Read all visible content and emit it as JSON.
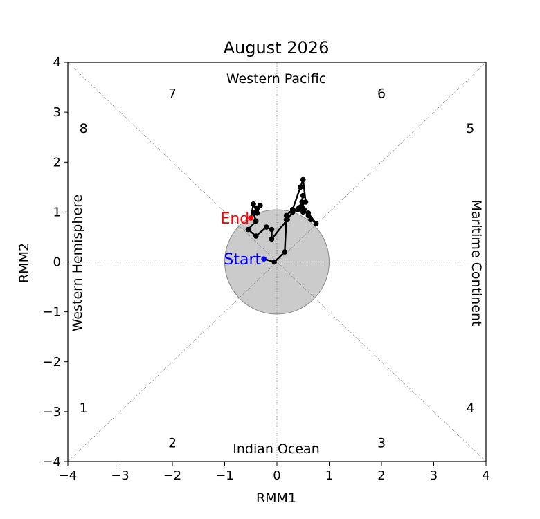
{
  "chart_data": {
    "type": "line",
    "title": "August 2026",
    "xlabel": "RMM1",
    "ylabel": "RMM2",
    "xlim": [
      -4,
      4
    ],
    "ylim": [
      -4,
      4
    ],
    "x_ticks": [
      "−4",
      "−3",
      "−2",
      "−1",
      "0",
      "1",
      "2",
      "3",
      "4"
    ],
    "y_ticks": [
      "−4",
      "−3",
      "−2",
      "−1",
      "0",
      "1",
      "2",
      "3",
      "4"
    ],
    "regions": {
      "top": "Western Pacific",
      "bottom": "Indian Ocean",
      "left": "Western Hemisphere",
      "right": "Maritime Continent"
    },
    "phases": [
      {
        "label": "1",
        "x": -3.7,
        "y": -2.92
      },
      {
        "label": "2",
        "x": -2.0,
        "y": -3.62
      },
      {
        "label": "3",
        "x": 2.0,
        "y": -3.62
      },
      {
        "label": "4",
        "x": 3.7,
        "y": -2.92
      },
      {
        "label": "5",
        "x": 3.7,
        "y": 2.68
      },
      {
        "label": "6",
        "x": 2.0,
        "y": 3.38
      },
      {
        "label": "7",
        "x": -2.0,
        "y": 3.38
      },
      {
        "label": "8",
        "x": -3.7,
        "y": 2.68
      }
    ],
    "unit_circle_radius": 1,
    "start_label": "Start",
    "end_label": "End",
    "start_color": "#0000ff",
    "end_color": "#ff0000",
    "line_color": "#000000",
    "circle_color": "#c8c8c8",
    "series": [
      {
        "x": [
          -0.25,
          -0.05,
          0.15,
          0.18,
          0.18,
          0.3,
          0.45,
          0.5,
          0.55,
          0.45,
          0.5,
          0.48,
          0.42,
          0.4,
          0.5,
          0.6,
          0.75,
          0.65,
          0.6,
          0.52,
          0.48,
          0.4,
          0.3,
          0.2,
          -0.1,
          -0.1,
          -0.2,
          -0.4,
          -0.55,
          -0.4,
          -0.45,
          -0.38,
          -0.32,
          -0.38,
          -0.45,
          -0.5
        ],
        "y": [
          0.06,
          0.0,
          0.2,
          0.85,
          0.93,
          1.05,
          1.5,
          1.65,
          1.2,
          1.1,
          1.33,
          1.2,
          1.08,
          1.05,
          1.0,
          0.98,
          0.77,
          0.85,
          0.93,
          1.05,
          1.1,
          1.05,
          1.0,
          0.85,
          0.46,
          0.65,
          0.7,
          0.52,
          0.65,
          0.82,
          0.98,
          1.08,
          1.13,
          0.98,
          1.16,
          0.88
        ]
      }
    ]
  }
}
